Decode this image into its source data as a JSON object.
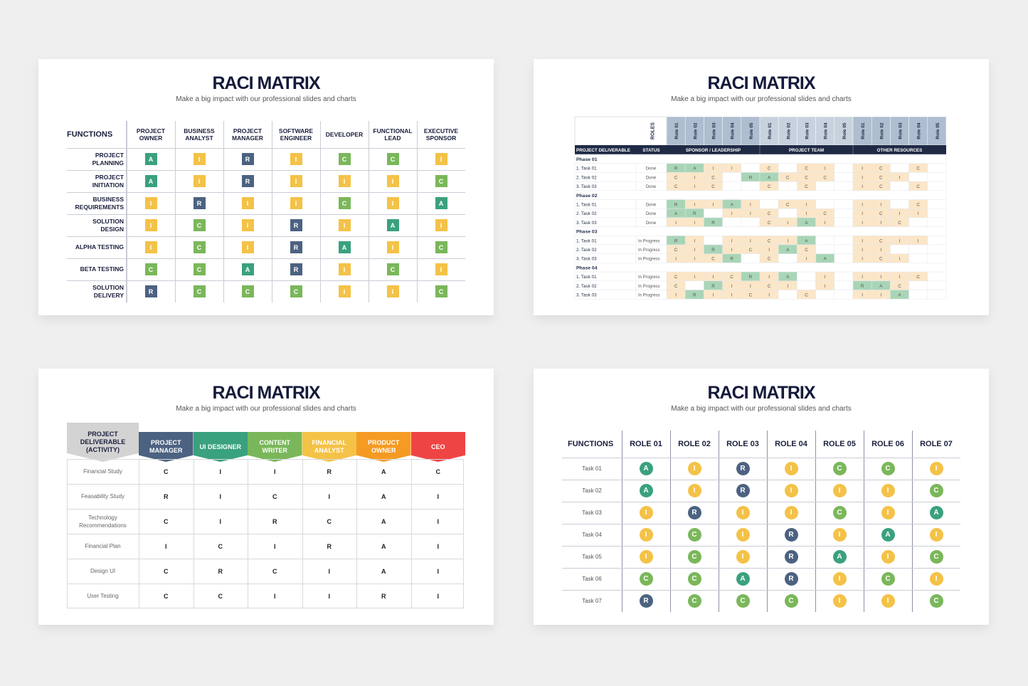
{
  "title": "RACI MATRIX",
  "subtitle": "Make a big impact with our professional slides and charts",
  "colors": {
    "A": "#3aa17e",
    "R": "#4c6281",
    "C": "#7ab75a",
    "I": "#f4c247"
  },
  "slide1": {
    "functions_label": "FUNCTIONS",
    "columns": [
      "PROJECT\nOWNER",
      "BUSINESS\nANALYST",
      "PROJECT\nMANAGER",
      "SOFTWARE\nENGINEER",
      "DEVELOPER",
      "FUNCTIONAL\nLEAD",
      "EXECUTIVE\nSPONSOR"
    ],
    "rows": [
      {
        "name": "PROJECT\nPLANNING",
        "cells": [
          "A",
          "I",
          "R",
          "I",
          "C",
          "C",
          "I"
        ]
      },
      {
        "name": "PROJECT\nINITIATION",
        "cells": [
          "A",
          "I",
          "R",
          "I",
          "I",
          "I",
          "C"
        ]
      },
      {
        "name": "BUSINESS\nREQUIREMENTS",
        "cells": [
          "I",
          "R",
          "I",
          "I",
          "C",
          "I",
          "A"
        ]
      },
      {
        "name": "SOLUTION\nDESIGN",
        "cells": [
          "I",
          "C",
          "I",
          "R",
          "I",
          "A",
          "I"
        ]
      },
      {
        "name": "ALPHA TESTING",
        "cells": [
          "I",
          "C",
          "I",
          "R",
          "A",
          "I",
          "C"
        ]
      },
      {
        "name": "BETA TESTING",
        "cells": [
          "C",
          "C",
          "A",
          "R",
          "I",
          "C",
          "I"
        ]
      },
      {
        "name": "SOLUTION\nDELIVERY",
        "cells": [
          "R",
          "C",
          "C",
          "C",
          "I",
          "I",
          "C"
        ]
      }
    ]
  },
  "slide2": {
    "roles_label": "ROLES",
    "role_labels": [
      "Role 01",
      "Role 02",
      "Role 03",
      "Role 04",
      "Role 05",
      "Role 01",
      "Role 02",
      "Role 03",
      "Role 04",
      "Role 05",
      "Role 01",
      "Role 02",
      "Role 03",
      "Role 04",
      "Role 05"
    ],
    "col_deliverable": "PROJECT DELIVERABLE",
    "col_status": "STATUS",
    "groups": [
      "SPONSOR / LEADERSHIP",
      "PROJECT TEAM",
      "OTHER RESOURCES"
    ],
    "phases": [
      {
        "name": "Phase 01",
        "tasks": [
          {
            "task": "1. Task 01",
            "status": "Done",
            "cells": [
              "R",
              "A",
              "I",
              "I",
              "",
              "C",
              "",
              "C",
              "I",
              "",
              "I",
              "C",
              "",
              "C",
              ""
            ]
          },
          {
            "task": "2. Task 02",
            "status": "Done",
            "cells": [
              "C",
              "I",
              "C",
              "",
              "R",
              "A",
              "C",
              "C",
              "C",
              "",
              "I",
              "C",
              "I",
              "",
              ""
            ]
          },
          {
            "task": "3. Task 03",
            "status": "Done",
            "cells": [
              "C",
              "I",
              "C",
              "",
              "",
              "C",
              "",
              "C",
              "",
              "",
              "I",
              "C",
              "",
              "C",
              ""
            ]
          }
        ]
      },
      {
        "name": "Phase 02",
        "tasks": [
          {
            "task": "1. Task 01",
            "status": "Done",
            "cells": [
              "R",
              "I",
              "I",
              "A",
              "I",
              "",
              "C",
              "I",
              "",
              "",
              "I",
              "I",
              "",
              "C",
              ""
            ]
          },
          {
            "task": "2. Task 02",
            "status": "Done",
            "cells": [
              "A",
              "R",
              "",
              "I",
              "I",
              "C",
              "",
              "I",
              "C",
              "",
              "I",
              "C",
              "I",
              "I",
              ""
            ]
          },
          {
            "task": "3. Task 03",
            "status": "Done",
            "cells": [
              "I",
              "I",
              "R",
              "",
              "",
              "C",
              "I",
              "A",
              "I",
              "",
              "I",
              "I",
              "C",
              "",
              ""
            ]
          }
        ]
      },
      {
        "name": "Phase 03",
        "tasks": [
          {
            "task": "1. Task 01",
            "status": "In Progress",
            "cells": [
              "R",
              "I",
              "",
              "I",
              "I",
              "C",
              "I",
              "A",
              "",
              "",
              "I",
              "C",
              "I",
              "I",
              ""
            ]
          },
          {
            "task": "2. Task 02",
            "status": "In Progress",
            "cells": [
              "C",
              "I",
              "R",
              "I",
              "C",
              "I",
              "A",
              "C",
              "",
              "",
              "I",
              "I",
              "",
              "",
              ""
            ]
          },
          {
            "task": "3. Task 03",
            "status": "In Progress",
            "cells": [
              "I",
              "I",
              "C",
              "R",
              "",
              "C",
              "",
              "I",
              "A",
              "",
              "I",
              "C",
              "I",
              "",
              ""
            ]
          }
        ]
      },
      {
        "name": "Phase 04",
        "tasks": [
          {
            "task": "1. Task 01",
            "status": "In Progress",
            "cells": [
              "C",
              "I",
              "I",
              "C",
              "R",
              "I",
              "A",
              "",
              "I",
              "",
              "I",
              "I",
              "I",
              "C",
              ""
            ]
          },
          {
            "task": "2. Task 02",
            "status": "In Progress",
            "cells": [
              "C",
              "",
              "R",
              "I",
              "I",
              "C",
              "I",
              "",
              "I",
              "",
              "R",
              "A",
              "C",
              "",
              ""
            ]
          },
          {
            "task": "3. Task 03",
            "status": "In Progress",
            "cells": [
              "I",
              "R",
              "I",
              "I",
              "C",
              "I",
              "",
              "C",
              "",
              "",
              "I",
              "I",
              "A",
              "",
              ""
            ]
          }
        ]
      }
    ]
  },
  "slide3": {
    "corner_label": "PROJECT\nDELIVERABLE\n(ACTIVITY)",
    "columns": [
      {
        "label": "PROJECT\nMANAGER",
        "color": "#4c6281"
      },
      {
        "label": "UI DESIGNER",
        "color": "#3aa17e"
      },
      {
        "label": "CONTENT\nWRITER",
        "color": "#7ab75a"
      },
      {
        "label": "FINANCIAL\nANALYST",
        "color": "#f4c247"
      },
      {
        "label": "PRODUCT\nOWNER",
        "color": "#f59a23"
      },
      {
        "label": "CEO",
        "color": "#ef4444"
      }
    ],
    "rows": [
      {
        "name": "Financial Study",
        "cells": [
          "C",
          "I",
          "I",
          "R",
          "A",
          "C"
        ]
      },
      {
        "name": "Feasability Study",
        "cells": [
          "R",
          "I",
          "C",
          "I",
          "A",
          "I"
        ]
      },
      {
        "name": "Technology\nRecommendations",
        "cells": [
          "C",
          "I",
          "R",
          "C",
          "A",
          "I"
        ]
      },
      {
        "name": "Financial Plan",
        "cells": [
          "I",
          "C",
          "I",
          "R",
          "A",
          "I"
        ]
      },
      {
        "name": "Design UI",
        "cells": [
          "C",
          "R",
          "C",
          "I",
          "A",
          "I"
        ]
      },
      {
        "name": "User Testing",
        "cells": [
          "C",
          "C",
          "I",
          "I",
          "R",
          "I"
        ]
      }
    ]
  },
  "slide4": {
    "functions_label": "FUNCTIONS",
    "columns": [
      "ROLE 01",
      "ROLE 02",
      "ROLE 03",
      "ROLE 04",
      "ROLE 05",
      "ROLE 06",
      "ROLE 07"
    ],
    "rows": [
      {
        "name": "Task 01",
        "cells": [
          "A",
          "I",
          "R",
          "I",
          "C",
          "C",
          "I"
        ]
      },
      {
        "name": "Task 02",
        "cells": [
          "A",
          "I",
          "R",
          "I",
          "I",
          "I",
          "C"
        ]
      },
      {
        "name": "Task 03",
        "cells": [
          "I",
          "R",
          "I",
          "I",
          "C",
          "I",
          "A"
        ]
      },
      {
        "name": "Task 04",
        "cells": [
          "I",
          "C",
          "I",
          "R",
          "I",
          "A",
          "I"
        ]
      },
      {
        "name": "Task 05",
        "cells": [
          "I",
          "C",
          "I",
          "R",
          "A",
          "I",
          "C"
        ]
      },
      {
        "name": "Task 06",
        "cells": [
          "C",
          "C",
          "A",
          "R",
          "I",
          "C",
          "I"
        ]
      },
      {
        "name": "Task 07",
        "cells": [
          "R",
          "C",
          "C",
          "C",
          "I",
          "I",
          "C"
        ]
      }
    ]
  }
}
